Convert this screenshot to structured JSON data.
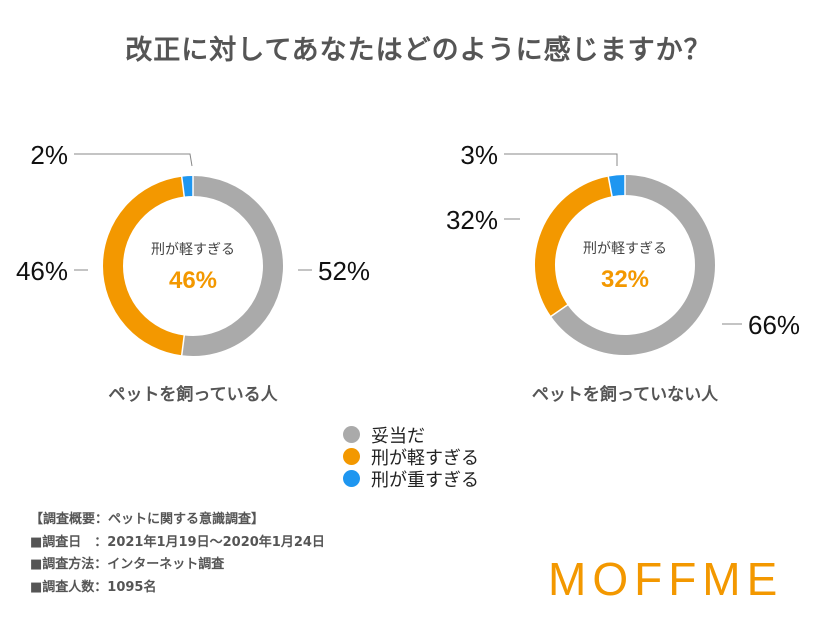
{
  "title": "改正に対してあなたはどのように感じますか？",
  "colors": {
    "appropriate": "#aaaaaa",
    "too_light": "#f39800",
    "too_heavy": "#1e96f0",
    "center_value": "#f39800",
    "brand": "#f39800"
  },
  "chart_data": [
    {
      "type": "pie",
      "variant": "donut",
      "subtitle": "ペットを飼っている人",
      "center_label": "刑が軽すぎる",
      "center_value": "46%",
      "slices": [
        {
          "name": "妥当だ",
          "value": 52,
          "label": "52%"
        },
        {
          "name": "刑が軽すぎる",
          "value": 46,
          "label": "46%"
        },
        {
          "name": "刑が重すぎる",
          "value": 2,
          "label": "2%"
        }
      ]
    },
    {
      "type": "pie",
      "variant": "donut",
      "subtitle": "ペットを飼っていない人",
      "center_label": "刑が軽すぎる",
      "center_value": "32%",
      "slices": [
        {
          "name": "妥当だ",
          "value": 66,
          "label": "66%"
        },
        {
          "name": "刑が軽すぎる",
          "value": 32,
          "label": "32%"
        },
        {
          "name": "刑が重すぎる",
          "value": 3,
          "label": "3%"
        }
      ]
    }
  ],
  "legend": [
    {
      "label": "妥当だ",
      "color": "#aaaaaa"
    },
    {
      "label": "刑が軽すぎる",
      "color": "#f39800"
    },
    {
      "label": "刑が重すぎる",
      "color": "#1e96f0"
    }
  ],
  "survey": {
    "heading": "【調査概要：ペットに関する意識調査】",
    "date": "■調査日　：2021年1月19日〜2020年1月24日",
    "method": "■調査方法：インターネット調査",
    "count": "■調査人数：1095名"
  },
  "brand": "MOFFME"
}
